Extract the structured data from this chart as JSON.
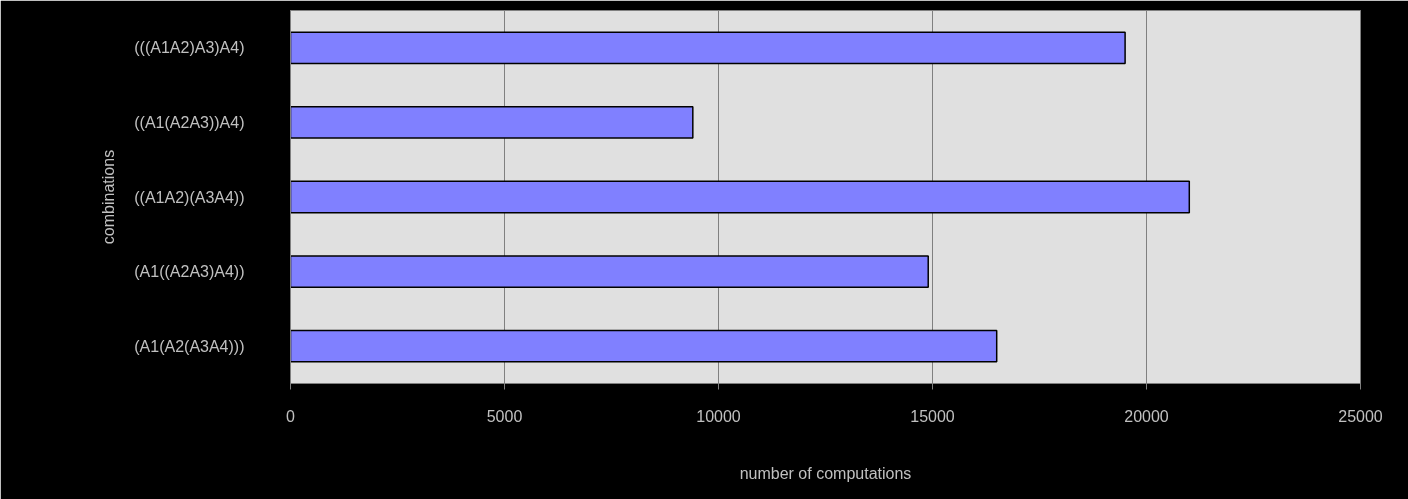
{
  "chart_data": {
    "type": "bar",
    "orientation": "horizontal",
    "xlabel": "number of computations",
    "ylabel": "combinations",
    "categories": [
      "(((A1A2)A3)A4)",
      "((A1(A2A3))A4)",
      "((A1A2)(A3A4))",
      "(A1((A2A3)A4))",
      "(A1(A2(A3A4)))"
    ],
    "values": [
      19500,
      9400,
      21000,
      14900,
      16500
    ],
    "color": "#8080ff",
    "xlim": [
      0,
      25000
    ],
    "xticks": [
      0,
      5000,
      10000,
      15000,
      20000,
      25000
    ],
    "grid": "x"
  }
}
